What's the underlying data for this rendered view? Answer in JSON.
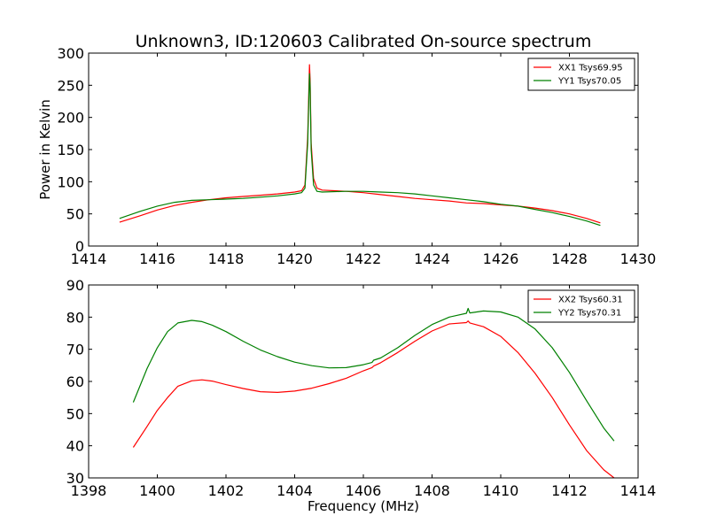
{
  "figure": {
    "title": "Unknown3, ID:120603 Calibrated On-source spectrum",
    "xlabel": "Frequency (MHz)",
    "ylabel": "Power in Kelvin"
  },
  "colors": {
    "red": "#ff0000",
    "green": "#008000",
    "axes": "#000000"
  },
  "chart_data": [
    {
      "type": "line",
      "title": "Unknown3, ID:120603 Calibrated On-source spectrum",
      "xlabel": "",
      "ylabel": "Power in Kelvin",
      "xlim": [
        1414,
        1430
      ],
      "ylim": [
        0,
        300
      ],
      "xticks": [
        1414,
        1416,
        1418,
        1420,
        1422,
        1424,
        1426,
        1428,
        1430
      ],
      "yticks": [
        0,
        50,
        100,
        150,
        200,
        250,
        300
      ],
      "grid": false,
      "legend": "top-right",
      "series": [
        {
          "name": "XX1 Tsys69.95",
          "color": "#ff0000",
          "x": [
            1414.9,
            1415.5,
            1416,
            1416.5,
            1417,
            1417.5,
            1418,
            1418.5,
            1419,
            1419.5,
            1420,
            1420.2,
            1420.3,
            1420.38,
            1420.43,
            1420.45,
            1420.48,
            1420.55,
            1420.65,
            1420.8,
            1421.5,
            1422,
            1422.5,
            1423,
            1423.5,
            1424,
            1424.5,
            1425,
            1425.5,
            1426,
            1426.5,
            1427,
            1427.5,
            1428,
            1428.5,
            1428.9
          ],
          "y": [
            37,
            47,
            56,
            63,
            68,
            72,
            75,
            77,
            79,
            81,
            84,
            86,
            95,
            170,
            282,
            260,
            160,
            105,
            90,
            87,
            85,
            83,
            80,
            77,
            74,
            72,
            70,
            67,
            66,
            64,
            62,
            59,
            55,
            50,
            43,
            36
          ]
        },
        {
          "name": "YY1 Tsys70.05",
          "color": "#008000",
          "x": [
            1414.9,
            1415.5,
            1416,
            1416.5,
            1417,
            1417.5,
            1418,
            1418.5,
            1419,
            1419.5,
            1420,
            1420.2,
            1420.3,
            1420.38,
            1420.43,
            1420.45,
            1420.48,
            1420.55,
            1420.65,
            1420.8,
            1421.5,
            1422,
            1422.5,
            1423,
            1423.5,
            1424,
            1424.5,
            1425,
            1425.5,
            1426,
            1426.5,
            1427,
            1427.5,
            1428,
            1428.5,
            1428.9
          ],
          "y": [
            43,
            54,
            62,
            68,
            71,
            72,
            73,
            74,
            76,
            78,
            81,
            83,
            90,
            160,
            268,
            250,
            150,
            95,
            85,
            84,
            85,
            85,
            84,
            83,
            81,
            78,
            75,
            72,
            69,
            65,
            62,
            57,
            52,
            46,
            39,
            32
          ]
        }
      ]
    },
    {
      "type": "line",
      "title": "",
      "xlabel": "Frequency (MHz)",
      "ylabel": "",
      "xlim": [
        1398,
        1414
      ],
      "ylim": [
        30,
        90
      ],
      "xticks": [
        1398,
        1400,
        1402,
        1404,
        1406,
        1408,
        1410,
        1412,
        1414
      ],
      "yticks": [
        30,
        40,
        50,
        60,
        70,
        80,
        90
      ],
      "grid": false,
      "legend": "top-right",
      "series": [
        {
          "name": "XX2 Tsys60.31",
          "color": "#ff0000",
          "x": [
            1399.3,
            1399.7,
            1400,
            1400.3,
            1400.6,
            1401,
            1401.3,
            1401.6,
            1402,
            1402.5,
            1403,
            1403.5,
            1404,
            1404.5,
            1405,
            1405.5,
            1406,
            1406.25,
            1406.3,
            1406.5,
            1407,
            1407.5,
            1408,
            1408.5,
            1409,
            1409.05,
            1409.1,
            1409.5,
            1410,
            1410.5,
            1411,
            1411.5,
            1412,
            1412.5,
            1413,
            1413.3
          ],
          "y": [
            39.5,
            46,
            51,
            55,
            58.5,
            60.2,
            60.5,
            60.1,
            59,
            57.8,
            56.8,
            56.6,
            57,
            57.9,
            59.3,
            61,
            63.3,
            64.3,
            64.8,
            65.8,
            69,
            72.5,
            75.7,
            77.9,
            78.3,
            78.8,
            78.2,
            77,
            74,
            69,
            62.5,
            55,
            46.5,
            38.5,
            32.5,
            30
          ]
        },
        {
          "name": "YY2 Tsys70.31",
          "color": "#008000",
          "x": [
            1399.3,
            1399.7,
            1400,
            1400.3,
            1400.6,
            1401,
            1401.3,
            1401.6,
            1402,
            1402.5,
            1403,
            1403.5,
            1404,
            1404.5,
            1405,
            1405.5,
            1406,
            1406.25,
            1406.3,
            1406.5,
            1407,
            1407.5,
            1408,
            1408.5,
            1409,
            1409.05,
            1409.1,
            1409.5,
            1410,
            1410.5,
            1411,
            1411.5,
            1412,
            1412.5,
            1413,
            1413.3
          ],
          "y": [
            53.5,
            64,
            70.5,
            75.5,
            78.2,
            79,
            78.6,
            77.5,
            75.5,
            72.5,
            69.8,
            67.7,
            66,
            64.9,
            64.2,
            64.3,
            65.2,
            65.9,
            66.6,
            67.3,
            70.5,
            74.3,
            77.7,
            80,
            81.2,
            82.7,
            81.3,
            81.9,
            81.6,
            80,
            76.3,
            70.5,
            62.8,
            54,
            45.5,
            41.5
          ]
        }
      ]
    }
  ]
}
